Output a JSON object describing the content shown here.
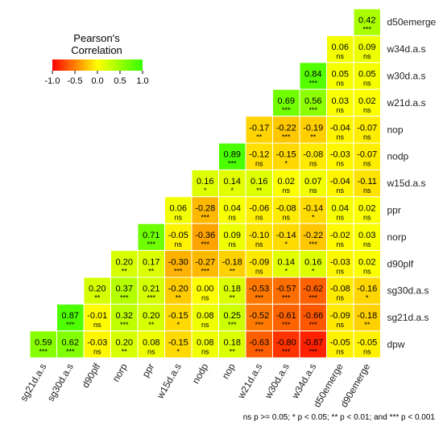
{
  "chart_data": {
    "type": "heatmap",
    "legend": {
      "title_line1": "Pearson's",
      "title_line2": "Correlation",
      "ticks": [
        "-1.0",
        "-0.5",
        "0.0",
        "0.5",
        "1.0"
      ],
      "tick_values": [
        -1.0,
        -0.5,
        0.0,
        0.5,
        1.0
      ],
      "colors": {
        "low": "#ff0000",
        "mid": "#ffff00",
        "high": "#33ff00"
      },
      "placement": "top-left"
    },
    "columns": [
      "sg21d.a.s",
      "sg30d.a.s",
      "d90plf",
      "norp",
      "ppr",
      "w15d.a.s",
      "nodp",
      "nop",
      "w21d.a.s",
      "w30d.a.s",
      "w34d.a.s",
      "d50emerge",
      "d90emerge"
    ],
    "rows": [
      "d50emerge",
      "w34d.a.s",
      "w30d.a.s",
      "w21d.a.s",
      "nop",
      "nodp",
      "w15d.a.s",
      "ppr",
      "norp",
      "d90plf",
      "sg30d.a.s",
      "sg21d.a.s",
      "dpw"
    ],
    "cells": [
      [
        null,
        null,
        null,
        null,
        null,
        null,
        null,
        null,
        null,
        null,
        null,
        null,
        [
          0.42,
          "***"
        ]
      ],
      [
        null,
        null,
        null,
        null,
        null,
        null,
        null,
        null,
        null,
        null,
        null,
        [
          0.06,
          "ns"
        ],
        [
          0.09,
          "ns"
        ]
      ],
      [
        null,
        null,
        null,
        null,
        null,
        null,
        null,
        null,
        null,
        null,
        [
          0.84,
          "***"
        ],
        [
          0.05,
          "ns"
        ],
        [
          0.05,
          "ns"
        ]
      ],
      [
        null,
        null,
        null,
        null,
        null,
        null,
        null,
        null,
        null,
        [
          0.69,
          "***"
        ],
        [
          0.56,
          "***"
        ],
        [
          0.03,
          "ns"
        ],
        [
          0.02,
          "ns"
        ]
      ],
      [
        null,
        null,
        null,
        null,
        null,
        null,
        null,
        null,
        [
          -0.17,
          "**"
        ],
        [
          -0.22,
          "***"
        ],
        [
          -0.19,
          "**"
        ],
        [
          -0.04,
          "ns"
        ],
        [
          -0.07,
          "ns"
        ]
      ],
      [
        null,
        null,
        null,
        null,
        null,
        null,
        null,
        [
          0.89,
          "***"
        ],
        [
          -0.12,
          "ns"
        ],
        [
          -0.15,
          "*"
        ],
        [
          -0.08,
          "ns"
        ],
        [
          -0.03,
          "ns"
        ],
        [
          -0.07,
          "ns"
        ]
      ],
      [
        null,
        null,
        null,
        null,
        null,
        null,
        [
          0.16,
          "*"
        ],
        [
          0.14,
          "*"
        ],
        [
          0.16,
          "**"
        ],
        [
          0.02,
          "ns"
        ],
        [
          0.07,
          "ns"
        ],
        [
          -0.04,
          "ns"
        ],
        [
          -0.11,
          "ns"
        ]
      ],
      [
        null,
        null,
        null,
        null,
        null,
        [
          0.06,
          "ns"
        ],
        [
          -0.28,
          "***"
        ],
        [
          0.04,
          "ns"
        ],
        [
          -0.06,
          "ns"
        ],
        [
          -0.08,
          "ns"
        ],
        [
          -0.14,
          "*"
        ],
        [
          0.04,
          "ns"
        ],
        [
          0.02,
          "ns"
        ]
      ],
      [
        null,
        null,
        null,
        null,
        [
          0.71,
          "***"
        ],
        [
          -0.05,
          "ns"
        ],
        [
          -0.36,
          "***"
        ],
        [
          0.09,
          "ns"
        ],
        [
          -0.1,
          "ns"
        ],
        [
          -0.14,
          "*"
        ],
        [
          -0.22,
          "***"
        ],
        [
          -0.02,
          "ns"
        ],
        [
          0.03,
          "ns"
        ]
      ],
      [
        null,
        null,
        null,
        [
          0.2,
          "**"
        ],
        [
          0.17,
          "**"
        ],
        [
          -0.3,
          "***"
        ],
        [
          -0.27,
          "***"
        ],
        [
          -0.18,
          "**"
        ],
        [
          -0.09,
          "ns"
        ],
        [
          0.14,
          "*"
        ],
        [
          0.16,
          "*"
        ],
        [
          -0.03,
          "ns"
        ],
        [
          0.02,
          "ns"
        ]
      ],
      [
        null,
        null,
        [
          0.2,
          "**"
        ],
        [
          0.37,
          "***"
        ],
        [
          0.21,
          "***"
        ],
        [
          -0.2,
          "**"
        ],
        [
          0.0,
          "ns"
        ],
        [
          0.18,
          "**"
        ],
        [
          -0.53,
          "***"
        ],
        [
          -0.57,
          "***"
        ],
        [
          -0.62,
          "***"
        ],
        [
          -0.08,
          "ns"
        ],
        [
          -0.16,
          "*"
        ]
      ],
      [
        null,
        [
          0.87,
          "***"
        ],
        [
          -0.01,
          "ns"
        ],
        [
          0.32,
          "***"
        ],
        [
          0.2,
          "**"
        ],
        [
          -0.15,
          "*"
        ],
        [
          0.08,
          "ns"
        ],
        [
          0.25,
          "***"
        ],
        [
          -0.52,
          "***"
        ],
        [
          -0.61,
          "***"
        ],
        [
          -0.66,
          "***"
        ],
        [
          -0.09,
          "ns"
        ],
        [
          -0.18,
          "**"
        ]
      ],
      [
        [
          0.59,
          "***"
        ],
        [
          0.62,
          "***"
        ],
        [
          -0.03,
          "ns"
        ],
        [
          0.2,
          "**"
        ],
        [
          0.08,
          "ns"
        ],
        [
          -0.15,
          "*"
        ],
        [
          0.08,
          "ns"
        ],
        [
          0.18,
          "**"
        ],
        [
          -0.63,
          "***"
        ],
        [
          -0.8,
          "***"
        ],
        [
          -0.87,
          "***"
        ],
        [
          -0.05,
          "ns"
        ],
        [
          -0.05,
          "ns"
        ]
      ]
    ],
    "footnote": "ns p >= 0.05; * p < 0.05; ** p < 0.01; and *** p < 0.001",
    "grid": false
  }
}
